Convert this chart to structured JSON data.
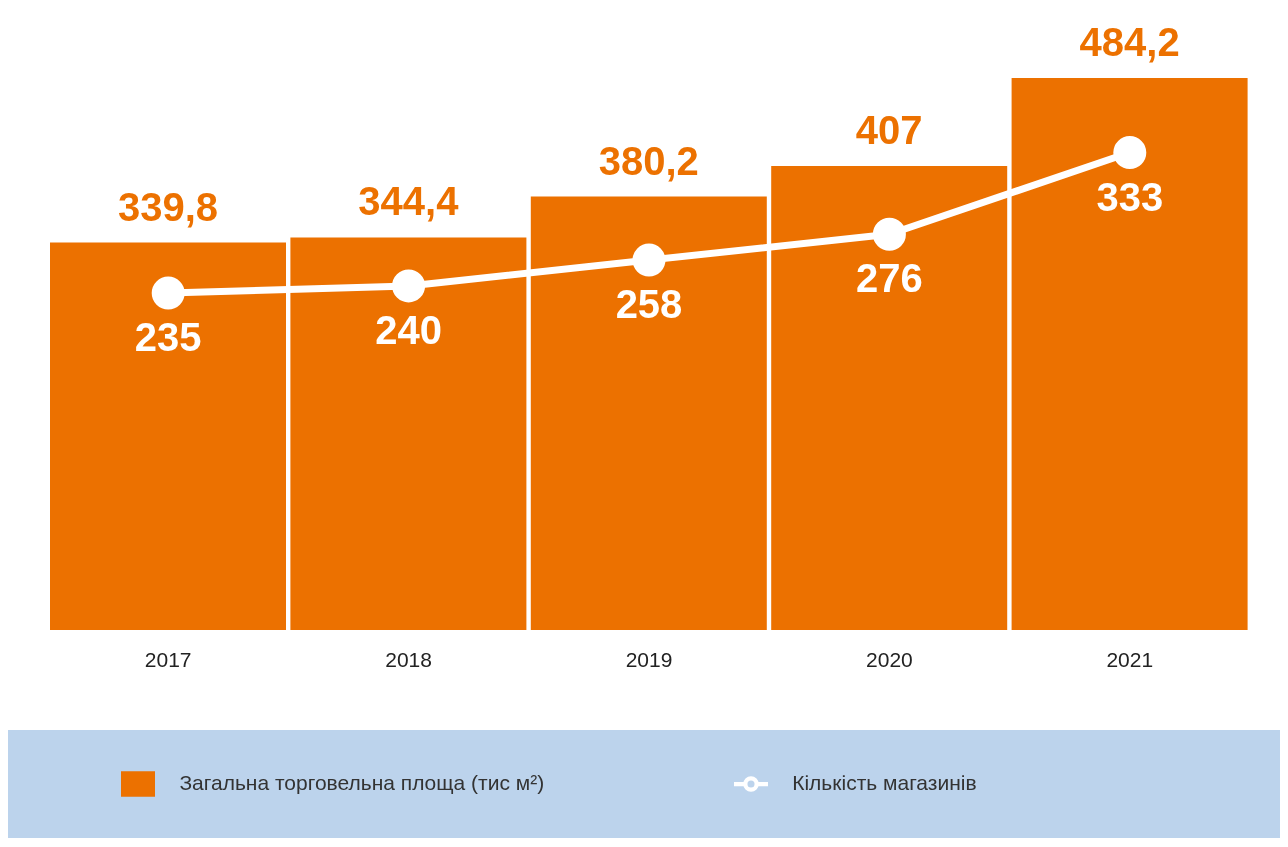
{
  "chart_data": {
    "type": "bar",
    "categories": [
      "2017",
      "2018",
      "2019",
      "2020",
      "2021"
    ],
    "series": [
      {
        "name": "Загальна торговельна площа (тис м²)",
        "color": "#ec7100",
        "values": [
          339.8,
          344.4,
          380.2,
          407,
          484.2
        ],
        "value_labels": [
          "339,8",
          "344,4",
          "380,2",
          "407",
          "484,2"
        ]
      },
      {
        "name": "Кількість магазинів",
        "type": "line",
        "axis": "y2",
        "color": "#ffffff",
        "values": [
          235,
          240,
          258,
          276,
          333
        ],
        "value_labels": [
          "235",
          "240",
          "258",
          "276",
          "333"
        ]
      }
    ],
    "y2lim": [
      0,
      385
    ],
    "tick_labels": "x",
    "legend": "bottom",
    "marker": "circle",
    "line_style": "solid"
  }
}
